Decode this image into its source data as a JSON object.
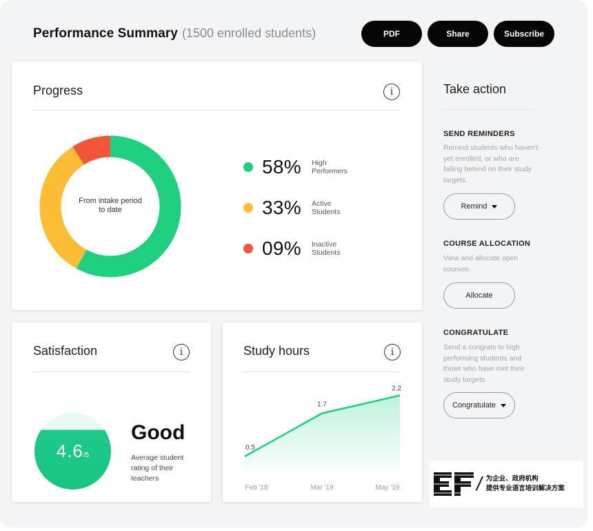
{
  "header": {
    "title": "Performance Summary",
    "subtitle": "(1500 enrolled students)",
    "buttons": {
      "pdf": "PDF",
      "share": "Share",
      "subscribe": "Subscribe"
    }
  },
  "progress": {
    "title": "Progress",
    "info_icon": "i",
    "center_label": "From intake period to date",
    "segments": [
      {
        "pct": "58%",
        "label_line1": "High",
        "label_line2": "Performers",
        "color": "#1ecf7f",
        "value": 58
      },
      {
        "pct": "33%",
        "label_line1": "Active",
        "label_line2": "Students",
        "color": "#fbbd34",
        "value": 33
      },
      {
        "pct": "09%",
        "label_line1": "Inactive",
        "label_line2": "Students",
        "color": "#f2553a",
        "value": 9
      }
    ]
  },
  "satisfaction": {
    "title": "Satisfaction",
    "info_icon": "i",
    "score": "4.6",
    "score_suffix": "/5",
    "rating_fraction": 0.78,
    "rating_word": "Good",
    "description": "Average student rating of their teachers"
  },
  "study_hours": {
    "title": "Study hours",
    "info_icon": "i",
    "chart_data": {
      "type": "area",
      "title": "Study hours",
      "categories": [
        "Feb '18",
        "Mar '19",
        "May '19"
      ],
      "series": [
        {
          "values": [
            0.5,
            1.7,
            2.2
          ]
        }
      ],
      "data_labels": [
        "0.5",
        "1.7",
        "2.2"
      ],
      "color": "#1ecf7f",
      "grid": false
    }
  },
  "take_action": {
    "title": "Take action",
    "sections": [
      {
        "heading": "SEND REMINDERS",
        "text": "Remind students who haven't yet enrolled, or who are falling behind on their study targets.",
        "button": "Remind"
      },
      {
        "heading": "COURSE ALLOCATION",
        "text": "View and allocate open courses.",
        "button": "Allocate"
      },
      {
        "heading": "CONGRATULATE",
        "text": "Send a congrats to high performing students and those who have met their study targets.",
        "button": "Congratulate"
      }
    ]
  },
  "watermark": {
    "logo_text": "EF",
    "line1": "为企业、政府机构",
    "line2": "提供专业语言培训解决方案"
  },
  "colors": {
    "accent_green": "#1ecf7f",
    "accent_yellow": "#fbbd34",
    "accent_red": "#f2553a",
    "background": "#f3f4f8",
    "button_dark": "#050505"
  }
}
